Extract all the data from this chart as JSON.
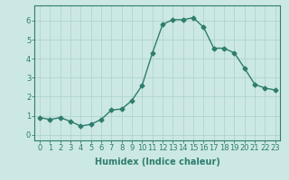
{
  "x": [
    0,
    1,
    2,
    3,
    4,
    5,
    6,
    7,
    8,
    9,
    10,
    11,
    12,
    13,
    14,
    15,
    16,
    17,
    18,
    19,
    20,
    21,
    22,
    23
  ],
  "y": [
    0.9,
    0.8,
    0.9,
    0.7,
    0.45,
    0.55,
    0.8,
    1.3,
    1.35,
    1.8,
    2.6,
    4.3,
    5.8,
    6.05,
    6.05,
    6.15,
    5.65,
    4.55,
    4.55,
    4.3,
    3.5,
    2.65,
    2.45,
    2.35
  ],
  "line_color": "#2e7d6e",
  "marker": "D",
  "marker_size": 2.5,
  "xlabel": "Humidex (Indice chaleur)",
  "ylim": [
    -0.3,
    6.8
  ],
  "xlim": [
    -0.5,
    23.5
  ],
  "yticks": [
    0,
    1,
    2,
    3,
    4,
    5,
    6
  ],
  "xticks": [
    0,
    1,
    2,
    3,
    4,
    5,
    6,
    7,
    8,
    9,
    10,
    11,
    12,
    13,
    14,
    15,
    16,
    17,
    18,
    19,
    20,
    21,
    22,
    23
  ],
  "bg_color": "#cce8e4",
  "grid_color": "#b0d4d0",
  "line_width": 1.0,
  "xlabel_fontsize": 7,
  "tick_fontsize": 6,
  "fig_width": 3.2,
  "fig_height": 2.0,
  "dpi": 100
}
